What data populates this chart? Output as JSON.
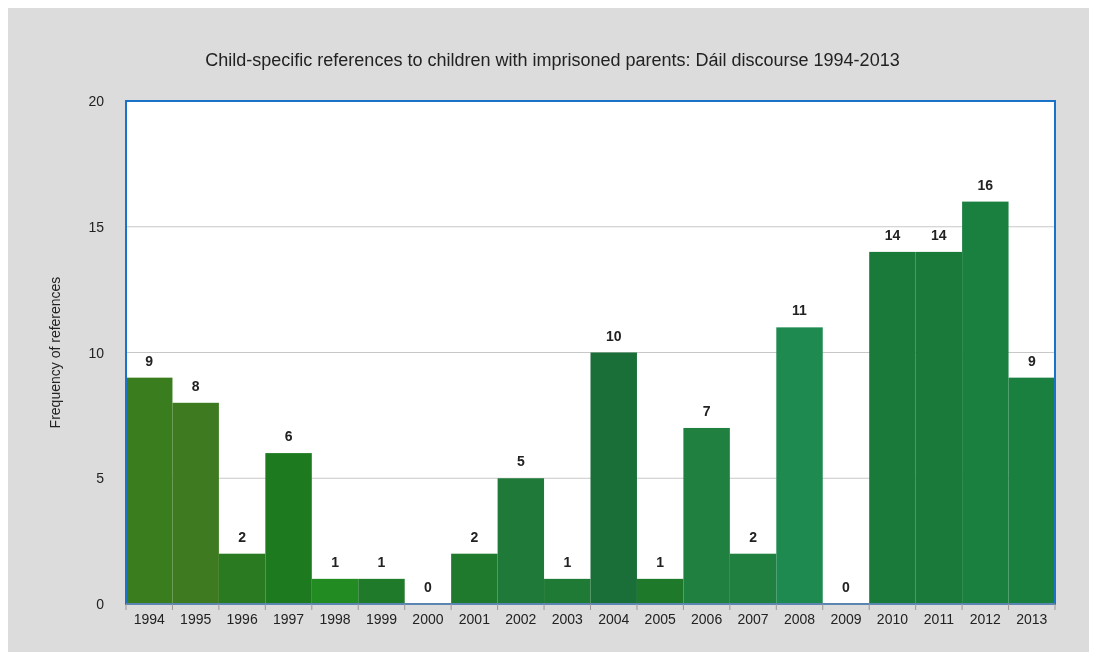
{
  "chart_data": {
    "type": "bar",
    "title": "Child-specific references to children with imprisoned parents: Dáil discourse 1994-2013",
    "ylabel": "Frequency of references",
    "categories": [
      "1994",
      "1995",
      "1996",
      "1997",
      "1998",
      "1999",
      "2000",
      "2001",
      "2002",
      "2003",
      "2004",
      "2005",
      "2006",
      "2007",
      "2008",
      "2009",
      "2010",
      "2011",
      "2012",
      "2013"
    ],
    "values": [
      9,
      8,
      2,
      6,
      1,
      1,
      0,
      2,
      5,
      1,
      10,
      1,
      7,
      2,
      11,
      0,
      14,
      14,
      16,
      9
    ],
    "colors": [
      "#3a7d1e",
      "#3d7a20",
      "#2a7a22",
      "#1e7a1e",
      "#228b22",
      "#1f7a2a",
      "#1f7a2a",
      "#1f7a2e",
      "#1f7a3a",
      "#1f7a35",
      "#1a6e38",
      "#1e7a2a",
      "#1f8040",
      "#1f8040",
      "#1f8a50",
      "#1f8a50",
      "#1a7a3a",
      "#1a7a3a",
      "#1a8040",
      "#1a8040"
    ],
    "ylim": [
      0,
      20
    ],
    "yticks": [
      0,
      5,
      10,
      15,
      20
    ],
    "grid": "y",
    "data_labels": true
  }
}
